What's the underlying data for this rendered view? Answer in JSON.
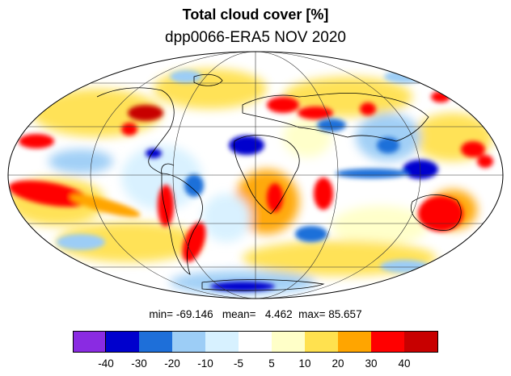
{
  "title": "Total cloud cover [%]",
  "subtitle": "dpp0066-ERA5 NOV 2020",
  "stats": {
    "min_label": "min=",
    "min": "-69.146",
    "mean_label": "mean=",
    "mean": "4.462",
    "max_label": "max=",
    "max": "85.657"
  },
  "colorbar": {
    "colors": [
      "#8a2be2",
      "#0000cd",
      "#1e6fd9",
      "#9ccdf6",
      "#d7f1ff",
      "#ffffff",
      "#ffffc8",
      "#ffe14f",
      "#ffa500",
      "#ff0000",
      "#c80000"
    ],
    "tick_labels": [
      "-40",
      "-30",
      "-20",
      "-10",
      "-5",
      "5",
      "10",
      "20",
      "30",
      "40"
    ]
  }
}
